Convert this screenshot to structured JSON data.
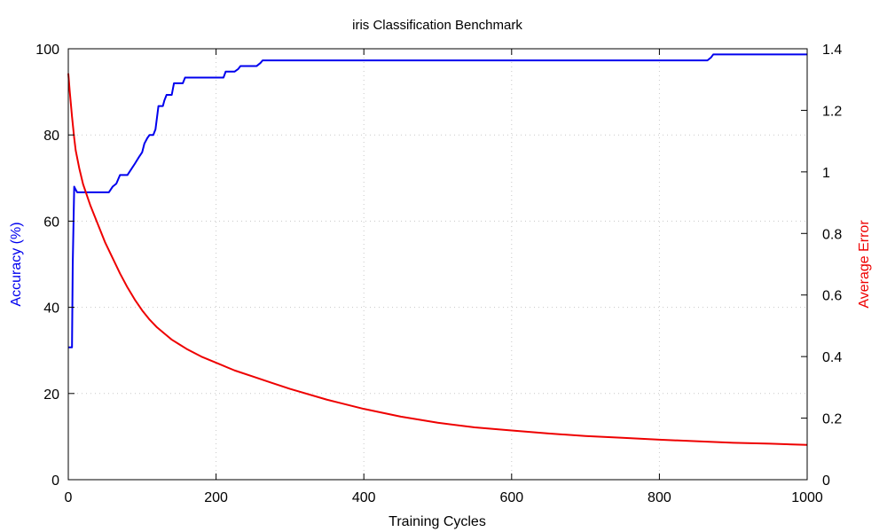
{
  "chart_data": {
    "type": "line",
    "title": "iris Classification Benchmark",
    "xlabel": "Training Cycles",
    "ylabel_left": "Accuracy (%)",
    "ylabel_right": "Average Error",
    "xlim": [
      0,
      1000
    ],
    "ylim_left": [
      0,
      100
    ],
    "ylim_right": [
      0,
      1.4
    ],
    "xticks": [
      0,
      200,
      400,
      600,
      800,
      1000
    ],
    "yticks_left": [
      0,
      20,
      40,
      60,
      80,
      100
    ],
    "yticks_right": [
      0,
      0.2,
      0.4,
      0.6,
      0.8,
      1,
      1.2,
      1.4
    ],
    "xtick_labels": [
      "0",
      "200",
      "400",
      "600",
      "800",
      "1000"
    ],
    "ytick_labels_left": [
      "0",
      "20",
      "40",
      "60",
      "80",
      "100"
    ],
    "ytick_labels_right": [
      "0",
      "0.2",
      "0.4",
      "0.6",
      "0.8",
      "1",
      "1.2",
      "1.4"
    ],
    "grid": true,
    "colors": {
      "accuracy": "#0000ee",
      "error": "#ee0000"
    },
    "series": [
      {
        "axis": "left",
        "color": "#0000ee",
        "x": [
          0,
          5,
          6,
          8,
          10,
          12,
          15,
          20,
          25,
          30,
          40,
          50,
          55,
          60,
          65,
          70,
          75,
          80,
          85,
          90,
          95,
          100,
          103,
          107,
          110,
          115,
          118,
          122,
          125,
          128,
          130,
          133,
          135,
          140,
          143,
          147,
          150,
          155,
          158,
          160,
          163,
          170,
          200,
          210,
          213,
          225,
          230,
          233,
          240,
          255,
          260,
          263,
          270,
          300,
          400,
          500,
          600,
          700,
          800,
          865,
          870,
          873,
          900,
          1000
        ],
        "y": [
          30.7,
          30.7,
          50,
          68,
          67.3,
          66.7,
          66.7,
          66.7,
          66.7,
          66.7,
          66.7,
          66.7,
          66.7,
          68,
          68.7,
          70.7,
          70.7,
          70.7,
          72,
          73.3,
          74.7,
          76,
          78,
          79.3,
          80,
          80,
          81.3,
          86.7,
          86.7,
          86.7,
          88,
          89.3,
          89.3,
          89.3,
          92,
          92,
          92,
          92,
          93.3,
          93.3,
          93.3,
          93.3,
          93.3,
          93.3,
          94.7,
          94.7,
          95.3,
          96,
          96,
          96,
          96.7,
          97.3,
          97.3,
          97.3,
          97.3,
          97.3,
          97.3,
          97.3,
          97.3,
          97.3,
          98,
          98.7,
          98.7,
          98.7
        ]
      },
      {
        "axis": "right",
        "color": "#ee0000",
        "x": [
          0,
          2,
          5,
          8,
          10,
          15,
          20,
          30,
          40,
          50,
          60,
          70,
          80,
          90,
          100,
          110,
          120,
          130,
          140,
          150,
          160,
          180,
          200,
          225,
          250,
          275,
          300,
          350,
          400,
          450,
          500,
          550,
          600,
          650,
          700,
          750,
          800,
          850,
          900,
          950,
          1000
        ],
        "y": [
          1.32,
          1.26,
          1.18,
          1.11,
          1.07,
          1.01,
          0.96,
          0.89,
          0.83,
          0.77,
          0.72,
          0.67,
          0.625,
          0.585,
          0.55,
          0.52,
          0.495,
          0.475,
          0.455,
          0.44,
          0.425,
          0.4,
          0.38,
          0.355,
          0.335,
          0.315,
          0.295,
          0.26,
          0.23,
          0.205,
          0.185,
          0.17,
          0.16,
          0.15,
          0.142,
          0.136,
          0.13,
          0.125,
          0.12,
          0.117,
          0.113
        ]
      }
    ]
  }
}
